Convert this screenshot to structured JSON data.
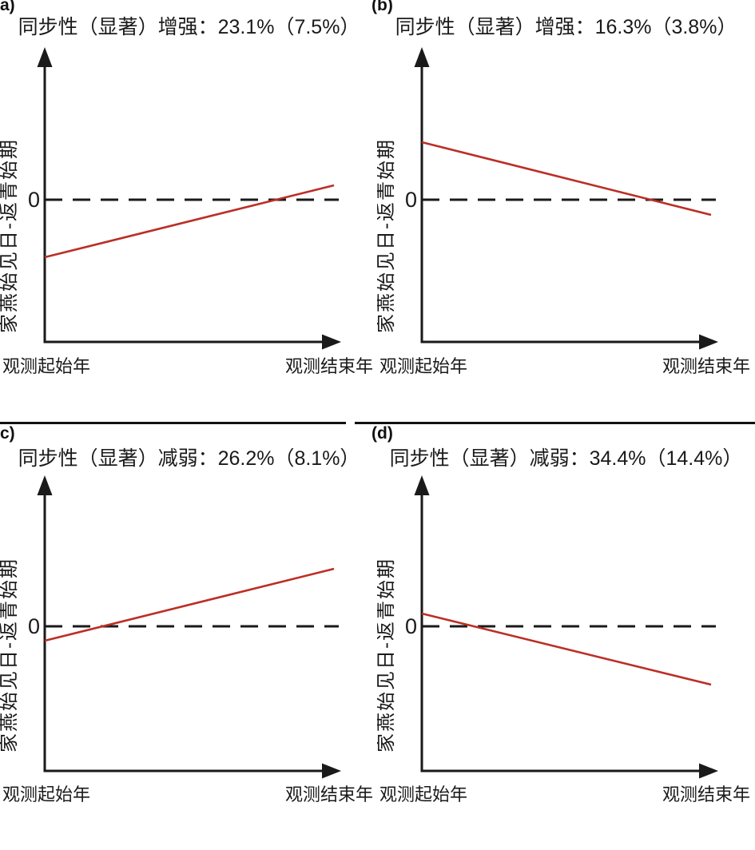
{
  "colors": {
    "trend_red": "#bb2f26",
    "axis_black": "#1a1a1a",
    "background": "#ffffff"
  },
  "chart_data": [
    {
      "panel": "(a)",
      "type": "line",
      "title": "同步性（显著）增强：23.1%（7.5%）",
      "synchrony_change": "增强",
      "significance": "显著",
      "percent_main": "23.1%",
      "percent_secondary": "7.5%",
      "ylabel": "家燕始见日-返青始期",
      "x_categories": [
        "观测起始年",
        "观测结束年"
      ],
      "zero_label": "0",
      "reference_line": {
        "y": 0,
        "style": "dashed"
      },
      "series": [
        {
          "name": "trend",
          "values": [
            -0.72,
            0.18
          ]
        }
      ],
      "ylim": [
        -1.8,
        1.9
      ],
      "grid": false
    },
    {
      "panel": "(b)",
      "type": "line",
      "title": "同步性（显著）增强：16.3%（3.8%）",
      "synchrony_change": "增强",
      "significance": "显著",
      "percent_main": "16.3%",
      "percent_secondary": "3.8%",
      "ylabel": "家燕始见日-返青始期",
      "x_categories": [
        "观测起始年",
        "观测结束年"
      ],
      "zero_label": "0",
      "reference_line": {
        "y": 0,
        "style": "dashed"
      },
      "series": [
        {
          "name": "trend",
          "values": [
            0.72,
            -0.19
          ]
        }
      ],
      "ylim": [
        -1.8,
        1.9
      ],
      "grid": false
    },
    {
      "panel": "(c)",
      "type": "line",
      "title": "同步性（显著）减弱：26.2%（8.1%）",
      "synchrony_change": "减弱",
      "significance": "显著",
      "percent_main": "26.2%",
      "percent_secondary": "8.1%",
      "ylabel": "家燕始见日-返青始期",
      "x_categories": [
        "观测起始年",
        "观测结束年"
      ],
      "zero_label": "0",
      "reference_line": {
        "y": 0,
        "style": "dashed"
      },
      "series": [
        {
          "name": "trend",
          "values": [
            -0.18,
            0.72
          ]
        }
      ],
      "ylim": [
        -1.8,
        1.9
      ],
      "grid": false
    },
    {
      "panel": "(d)",
      "type": "line",
      "title": "同步性（显著）减弱：34.4%（14.4%）",
      "synchrony_change": "减弱",
      "significance": "显著",
      "percent_main": "34.4%",
      "percent_secondary": "14.4%",
      "ylabel": "家燕始见日-返青始期",
      "x_categories": [
        "观测起始年",
        "观测结束年"
      ],
      "zero_label": "0",
      "reference_line": {
        "y": 0,
        "style": "dashed"
      },
      "series": [
        {
          "name": "trend",
          "values": [
            0.16,
            -0.73
          ]
        }
      ],
      "ylim": [
        -1.8,
        1.9
      ],
      "grid": false
    }
  ]
}
